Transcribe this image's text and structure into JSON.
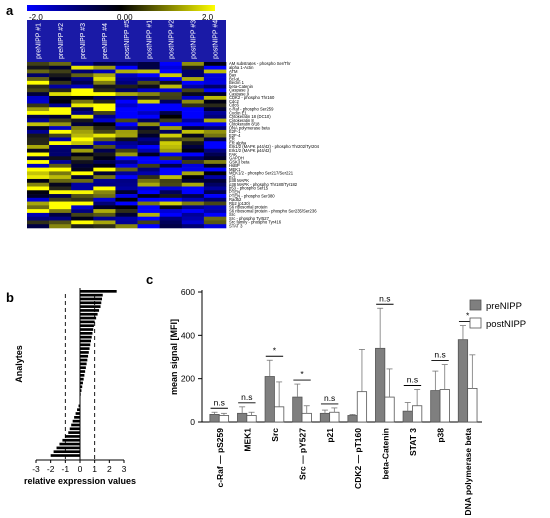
{
  "panels": {
    "a": "a",
    "b": "b",
    "c": "c"
  },
  "heatmap": {
    "colorbar": {
      "min": "-2.0",
      "mid": "0.00",
      "max": "2.0",
      "colors": [
        "#0000ff",
        "#000000",
        "#ffff00"
      ]
    },
    "columns": [
      "preNIPP #1",
      "preNIPP #2",
      "preNIPP #3",
      "preNIPP #4",
      "postNIPP #5",
      "postNIPP #1",
      "postNIPP #2",
      "postNIPP #3",
      "postNIPP #4"
    ],
    "rows": [
      "AM substrates - phospho Ser/Thr",
      "alpha 1-Actin",
      "ATM",
      "Bax",
      "Bcl-xL",
      "Beclin 1",
      "beta-Catenin",
      "Caspase 3",
      "Caspase 9",
      "CDK2 - phospho Thr160",
      "Cdc2",
      "Cdc6",
      "c-Raf - phospho Ser259",
      "Cyclin E1",
      "Cytokeratin 18 (DC10)",
      "Cytokeratin 8",
      "Cytokeratin 8/18",
      "DNA polymerase beta",
      "E2F-1",
      "E2F-4",
      "ER",
      "ER alpha",
      "Erk1/2 (MAPK p44/42) - phospho Thr202/Tyr204",
      "Erk1/2 (MAPK p44/42)",
      "FAK",
      "GAPDH",
      "GSK3 beta",
      "HsBP",
      "MEK1",
      "MEK1/2 - phospho Ser217/Ser221",
      "p21",
      "p38 MAPK",
      "p38 MAPK - phospho Thr180/Tyr182",
      "p53 - phospho Ser15",
      "PTEN",
      "PTEN - phospho Ser380",
      "Rad52",
      "Rb2 (p130)",
      "S6 ribosomal protein",
      "S6 ribosomal protein - phospho Ser235/Ser236",
      "Src",
      "Src - phospho Tyr527",
      "Src family - phospho Tyr416",
      "STAT 3"
    ]
  },
  "chart_data": [
    {
      "type": "bar",
      "panel": "b",
      "orientation": "horizontal",
      "ylabel": "Analytes",
      "xlabel": "relative expression values",
      "xlim": [
        -3,
        3
      ],
      "xticks": [
        "-3",
        "-2",
        "-1",
        "0",
        "1",
        "2",
        "3"
      ],
      "reference_lines": [
        -1,
        1
      ],
      "values": [
        2.5,
        1.55,
        1.5,
        1.45,
        1.4,
        1.3,
        1.2,
        1.1,
        1.0,
        0.95,
        0.9,
        0.85,
        0.8,
        0.75,
        0.7,
        0.65,
        0.6,
        0.55,
        0.5,
        0.45,
        0.4,
        0.35,
        0.3,
        0.25,
        0.2,
        0.15,
        0.1,
        0.05,
        0.02,
        0.01,
        -0.1,
        -0.2,
        -0.3,
        -0.4,
        -0.5,
        -0.6,
        -0.7,
        -0.8,
        -1.0,
        -1.2,
        -1.4,
        -1.6,
        -1.8,
        -2.0
      ]
    },
    {
      "type": "bar",
      "panel": "c",
      "ylabel": "mean signal [MFI]",
      "ylim": [
        0,
        600
      ],
      "yticks": [
        "0",
        "200",
        "400",
        "600"
      ],
      "categories": [
        "c-Raf — pS259",
        "MEK1",
        "Src",
        "Src — pY527",
        "p21",
        "CDK2 — pT160",
        "beta-Catenin",
        "STAT 3",
        "p38",
        "DNA polymerase beta"
      ],
      "series": [
        {
          "name": "preNIPP",
          "color": "#7f7f7f",
          "values": [
            35,
            40,
            210,
            115,
            40,
            30,
            340,
            50,
            145,
            380
          ],
          "errors": [
            10,
            30,
            75,
            60,
            15,
            5,
            185,
            40,
            90,
            65
          ]
        },
        {
          "name": "postNIPP",
          "color": "#ffffff",
          "values": [
            30,
            30,
            70,
            40,
            45,
            140,
            115,
            75,
            150,
            155
          ],
          "errors": [
            10,
            15,
            115,
            35,
            20,
            195,
            130,
            75,
            115,
            155
          ]
        }
      ],
      "significance": [
        "n.s",
        "n.s",
        "*",
        "*",
        "n.s",
        "",
        "n.s",
        "n.s",
        "n.s",
        "*"
      ],
      "legend_position": "top-right"
    }
  ]
}
